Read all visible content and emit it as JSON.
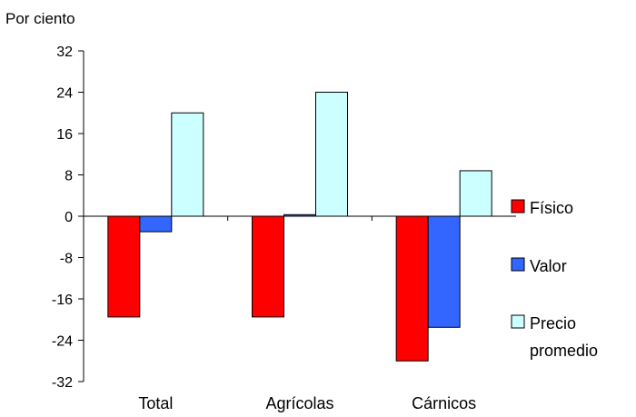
{
  "chart_data": {
    "type": "bar",
    "ylabel": "Por ciento",
    "categories": [
      "Total",
      "Agrícolas",
      "Cárnicos"
    ],
    "series": [
      {
        "name": "Físico",
        "values": [
          -19.5,
          -19.5,
          -28.0
        ],
        "color": "#ff0000"
      },
      {
        "name": "Valor",
        "values": [
          -3.0,
          0.3,
          -21.5
        ],
        "color": "#3366ff"
      },
      {
        "name": "Precio promedio",
        "name_lines": [
          "Precio",
          "promedio"
        ],
        "values": [
          20.0,
          24.0,
          8.8
        ],
        "color": "#ccffff"
      }
    ],
    "ylim": [
      -32,
      32
    ],
    "yticks": [
      32,
      24,
      16,
      8,
      0,
      -8,
      -16,
      -24,
      -32
    ],
    "grid": false,
    "legend_position": "right"
  }
}
